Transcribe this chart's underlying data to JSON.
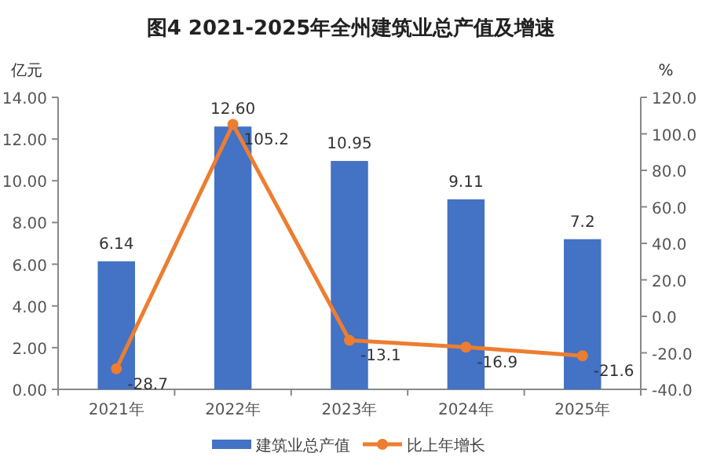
{
  "chart_data": {
    "type": "bar",
    "title": "图4  2021-2025年全州建筑业总产值及增速",
    "ylabel": "亿元",
    "y2label": "%",
    "categories": [
      "2021年",
      "2022年",
      "2023年",
      "2024年",
      "2025年"
    ],
    "series": [
      {
        "name": "建筑业总产值",
        "type": "bar",
        "color": "#4472c4",
        "values": [
          6.14,
          12.6,
          10.95,
          9.11,
          7.2
        ],
        "value_labels": [
          "6.14",
          "12.60",
          "10.95",
          "9.11",
          "7.2"
        ]
      },
      {
        "name": "比上年增长",
        "type": "line",
        "axis": "y2",
        "color": "#ed7d31",
        "marker": "circle",
        "values": [
          -28.7,
          105.2,
          -13.1,
          -16.9,
          -21.6
        ],
        "value_labels": [
          "-28.7",
          "105.2",
          "-13.1",
          "-16.9",
          "-21.6"
        ]
      }
    ],
    "ylim": [
      0,
      14
    ],
    "yticks": [
      {
        "value": 0,
        "label": "0.00"
      },
      {
        "value": 2,
        "label": "2.00"
      },
      {
        "value": 4,
        "label": "4.00"
      },
      {
        "value": 6,
        "label": "6.00"
      },
      {
        "value": 8,
        "label": "8.00"
      },
      {
        "value": 10,
        "label": "10.00"
      },
      {
        "value": 12,
        "label": "12.00"
      },
      {
        "value": 14,
        "label": "14.00"
      }
    ],
    "y2lim": [
      -40,
      120
    ],
    "y2ticks": [
      {
        "value": -40,
        "label": "-40.0"
      },
      {
        "value": -20,
        "label": "-20.0"
      },
      {
        "value": 0,
        "label": "0.0"
      },
      {
        "value": 20,
        "label": "20.0"
      },
      {
        "value": 40,
        "label": "40.0"
      },
      {
        "value": 60,
        "label": "60.0"
      },
      {
        "value": 80,
        "label": "80.0"
      },
      {
        "value": 100,
        "label": "100.0"
      },
      {
        "value": 120,
        "label": "120.0"
      }
    ],
    "grid": false,
    "legend": "bottom"
  }
}
